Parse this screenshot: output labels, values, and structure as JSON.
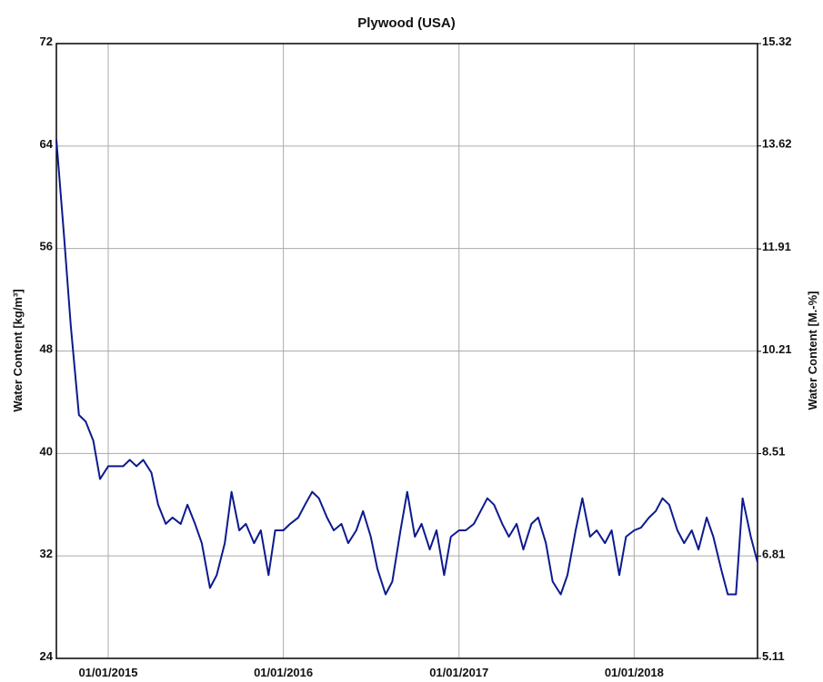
{
  "chart_data": {
    "type": "line",
    "title": "Plywood (USA)",
    "ylabel": "Water Content [kg/m³]",
    "y2label": "Water Content [M.-%]",
    "x": [
      "2014-09-15",
      "2014-10-01",
      "2014-10-15",
      "2014-11-01",
      "2014-11-15",
      "2014-12-01",
      "2014-12-15",
      "2015-01-01",
      "2015-01-15",
      "2015-02-01",
      "2015-02-15",
      "2015-03-01",
      "2015-03-15",
      "2015-04-01",
      "2015-04-15",
      "2015-05-01",
      "2015-05-15",
      "2015-06-01",
      "2015-06-15",
      "2015-07-01",
      "2015-07-15",
      "2015-08-01",
      "2015-08-15",
      "2015-09-01",
      "2015-09-15",
      "2015-10-01",
      "2015-10-15",
      "2015-11-01",
      "2015-11-15",
      "2015-12-01",
      "2015-12-15",
      "2016-01-01",
      "2016-01-15",
      "2016-02-01",
      "2016-02-15",
      "2016-03-01",
      "2016-03-15",
      "2016-04-01",
      "2016-04-15",
      "2016-05-01",
      "2016-05-15",
      "2016-06-01",
      "2016-06-15",
      "2016-07-01",
      "2016-07-15",
      "2016-08-01",
      "2016-08-15",
      "2016-09-01",
      "2016-09-15",
      "2016-10-01",
      "2016-10-15",
      "2016-11-01",
      "2016-11-15",
      "2016-12-01",
      "2016-12-15",
      "2017-01-01",
      "2017-01-15",
      "2017-02-01",
      "2017-02-15",
      "2017-03-01",
      "2017-03-15",
      "2017-04-01",
      "2017-04-15",
      "2017-05-01",
      "2017-05-15",
      "2017-06-01",
      "2017-06-15",
      "2017-07-01",
      "2017-07-15",
      "2017-08-01",
      "2017-08-15",
      "2017-09-01",
      "2017-09-15",
      "2017-10-01",
      "2017-10-15",
      "2017-11-01",
      "2017-11-15",
      "2017-12-01",
      "2017-12-15",
      "2018-01-01",
      "2018-01-15",
      "2018-02-01",
      "2018-02-15",
      "2018-03-01",
      "2018-03-15",
      "2018-04-01",
      "2018-04-15",
      "2018-05-01",
      "2018-05-15",
      "2018-06-01",
      "2018-06-15",
      "2018-07-01",
      "2018-07-15",
      "2018-08-01",
      "2018-08-15",
      "2018-09-01",
      "2018-09-15"
    ],
    "series": [
      {
        "name": "Water Content",
        "color": "#0c1a8e",
        "values": [
          64.5,
          57,
          50,
          43,
          42.5,
          41,
          38,
          39,
          39,
          39,
          39.5,
          39,
          39.5,
          38.5,
          36,
          34.5,
          35,
          34.5,
          36,
          34.5,
          33,
          29.5,
          30.5,
          33,
          37,
          34,
          34.5,
          33,
          34,
          30.5,
          34,
          34,
          34.5,
          35,
          36,
          37,
          36.5,
          35,
          34,
          34.5,
          33,
          34,
          35.5,
          33.5,
          31,
          29,
          30,
          34,
          37,
          33.5,
          34.5,
          32.5,
          34,
          30.5,
          33.5,
          34,
          34,
          34.5,
          35.5,
          36.5,
          36,
          34.5,
          33.5,
          34.5,
          32.5,
          34.5,
          35,
          33,
          30,
          29,
          30.5,
          34,
          36.5,
          33.5,
          34,
          33,
          34,
          30.5,
          33.5,
          34,
          34.2,
          35,
          35.5,
          36.5,
          36,
          34,
          33,
          34,
          32.5,
          35,
          33.5,
          31,
          29,
          29,
          36.5,
          33.5,
          31.5
        ]
      }
    ],
    "xlim": [
      "2014-09-15",
      "2018-09-15"
    ],
    "xticks": [
      {
        "value": "2015-01-01",
        "label": "01/01/2015"
      },
      {
        "value": "2016-01-01",
        "label": "01/01/2016"
      },
      {
        "value": "2017-01-01",
        "label": "01/01/2017"
      },
      {
        "value": "2018-01-01",
        "label": "01/01/2018"
      }
    ],
    "ylim": [
      24,
      72
    ],
    "yticks": [
      24,
      32,
      40,
      48,
      56,
      64,
      72
    ],
    "y2lim": [
      5.11,
      15.32
    ],
    "y2ticks": [
      5.11,
      6.81,
      8.51,
      10.21,
      11.91,
      13.62,
      15.32
    ],
    "grid": true
  }
}
